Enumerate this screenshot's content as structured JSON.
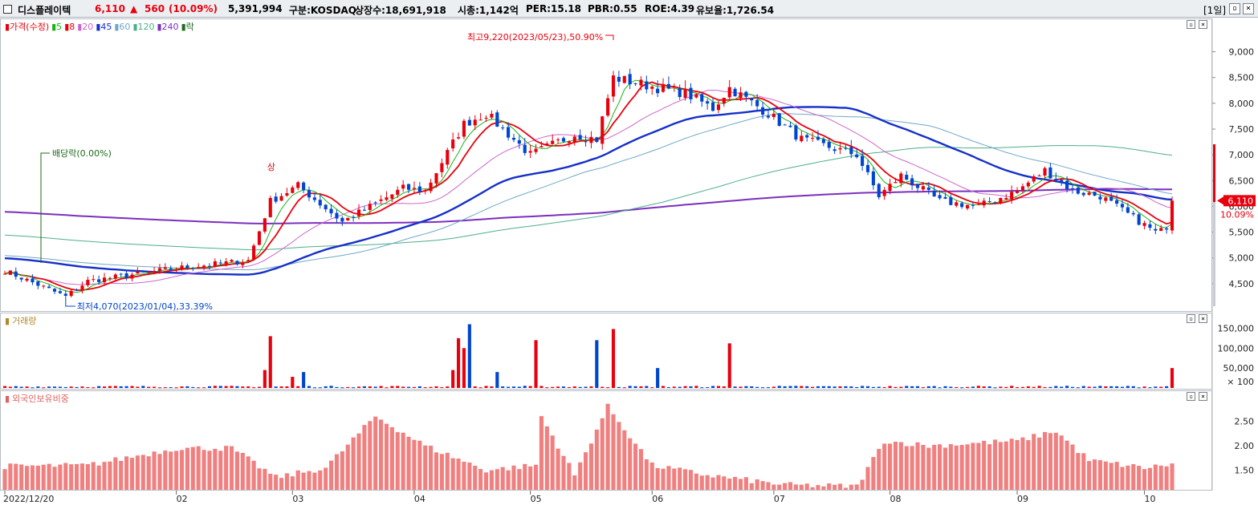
{
  "header": {
    "name": "디스플레이텍",
    "price": "6,110",
    "change_arrow": "▲",
    "change": "560",
    "change_pct": "(10.09%)",
    "volume": "5,391,994",
    "market": "구분:KOSDAQ",
    "shares": "상장수:18,691,918",
    "mcap": "시총:1,142억",
    "per": "PER:15.18",
    "pbr": "PBR:0.55",
    "roe": "ROE:4.39",
    "float": "유보율:1,726.54",
    "period": "[1일]",
    "colors": {
      "up": "#e8000d",
      "down": "#0045d0"
    }
  },
  "legends": {
    "price": [
      {
        "label": "가격(수정)",
        "color": "#e8000d"
      },
      {
        "label": "5",
        "color": "#18b418"
      },
      {
        "label": "8",
        "color": "#e8000d"
      },
      {
        "label": "20",
        "color": "#cc66cc"
      },
      {
        "label": "45",
        "color": "#1530c8"
      },
      {
        "label": "60",
        "color": "#6fa8c8"
      },
      {
        "label": "120",
        "color": "#4caf8a"
      },
      {
        "label": "240",
        "color": "#7b2fbe"
      },
      {
        "label": "락",
        "color": "#1e6b1e"
      }
    ],
    "volume": {
      "label": "거래량",
      "color": "#b08a2a"
    },
    "foreign": {
      "label": "외국인보유비중",
      "color": "#e06060"
    }
  },
  "annotations": {
    "high": "최고9,220(2023/05/23),50.90%",
    "low": "최저4,070(2023/01/04),33.39%",
    "dividend": "배당락(0.00%)",
    "upper_limit": "상",
    "current_price": "6,110",
    "current_pct": "10.09%"
  },
  "chart_data": [
    {
      "type": "candlestick",
      "title": "가격(수정)",
      "y_ticks": [
        "9,000",
        "8,500",
        "8,000",
        "7,500",
        "7,000",
        "6,500",
        "6,000",
        "5,500",
        "5,000",
        "4,500"
      ],
      "ylim": [
        4000,
        9600
      ],
      "x_labels": [
        "2022/12/20",
        "02",
        "03",
        "04",
        "05",
        "06",
        "07",
        "08",
        "09",
        "10"
      ],
      "moving_averages": [
        "5",
        "8",
        "20",
        "45",
        "60",
        "120",
        "240"
      ],
      "close_anchors": [
        [
          "2022/12/20",
          4750
        ],
        [
          "2023/01/04",
          4250
        ],
        [
          "2023/01/10",
          4550
        ],
        [
          "2023/02/01",
          4800
        ],
        [
          "2023/02/20",
          4950
        ],
        [
          "2023/02/24",
          6100
        ],
        [
          "2023/03/03",
          6400
        ],
        [
          "2023/03/15",
          5700
        ],
        [
          "2023/03/30",
          6350
        ],
        [
          "2023/04/05",
          6300
        ],
        [
          "2023/04/14",
          7600
        ],
        [
          "2023/04/20",
          7800
        ],
        [
          "2023/05/02",
          7000
        ],
        [
          "2023/05/12",
          7400
        ],
        [
          "2023/05/18",
          7300
        ],
        [
          "2023/05/23",
          8500
        ],
        [
          "2023/06/02",
          8300
        ],
        [
          "2023/06/09",
          8200
        ],
        [
          "2023/06/16",
          7900
        ],
        [
          "2023/06/21",
          8300
        ],
        [
          "2023/06/30",
          7800
        ],
        [
          "2023/07/10",
          7300
        ],
        [
          "2023/07/24",
          7000
        ],
        [
          "2023/07/28",
          6200
        ],
        [
          "2023/08/03",
          6600
        ],
        [
          "2023/08/14",
          6100
        ],
        [
          "2023/08/23",
          6000
        ],
        [
          "2023/09/01",
          6300
        ],
        [
          "2023/09/08",
          6700
        ],
        [
          "2023/09/15",
          6300
        ],
        [
          "2023/09/22",
          6200
        ],
        [
          "2023/10/06",
          5500
        ],
        [
          "2023/10/10",
          5550
        ],
        [
          "2023/10/11",
          6110
        ]
      ]
    },
    {
      "type": "bar",
      "title": "거래량",
      "y_ticks": [
        "150,000",
        "100,000",
        "50,000",
        "× 100"
      ],
      "ylim": [
        0,
        165000
      ],
      "peaks_x100": [
        [
          "2023/02/23",
          45000
        ],
        [
          "2023/02/24",
          130000
        ],
        [
          "2023/03/02",
          28000
        ],
        [
          "2023/03/06",
          40000
        ],
        [
          "2023/04/12",
          45000
        ],
        [
          "2023/04/13",
          125000
        ],
        [
          "2023/04/14",
          100000
        ],
        [
          "2023/04/17",
          160000
        ],
        [
          "2023/04/24",
          40000
        ],
        [
          "2023/05/03",
          120000
        ],
        [
          "2023/05/18",
          120000
        ],
        [
          "2023/05/23",
          148000
        ],
        [
          "2023/06/02",
          50000
        ],
        [
          "2023/06/21",
          112000
        ],
        [
          "2023/10/11",
          50000
        ]
      ]
    },
    {
      "type": "bar",
      "title": "외국인보유비중",
      "y_ticks": [
        "2.50",
        "2.00",
        "1.50"
      ],
      "ylim": [
        1.1,
        2.95
      ],
      "anchors": [
        [
          "2022/12/20",
          1.58
        ],
        [
          "2023/01/10",
          1.6
        ],
        [
          "2023/02/01",
          1.95
        ],
        [
          "2023/02/15",
          1.95
        ],
        [
          "2023/02/27",
          1.35
        ],
        [
          "2023/03/10",
          1.55
        ],
        [
          "2023/03/23",
          2.6
        ],
        [
          "2023/04/05",
          2.0
        ],
        [
          "2023/04/20",
          1.5
        ],
        [
          "2023/05/03",
          1.6
        ],
        [
          "2023/05/04",
          2.6
        ],
        [
          "2023/05/12",
          1.4
        ],
        [
          "2023/05/22",
          2.8
        ],
        [
          "2023/06/01",
          1.6
        ],
        [
          "2023/06/15",
          1.4
        ],
        [
          "2023/07/05",
          1.2
        ],
        [
          "2023/07/24",
          1.17
        ],
        [
          "2023/07/31",
          2.1
        ],
        [
          "2023/08/10",
          2.0
        ],
        [
          "2023/09/01",
          2.1
        ],
        [
          "2023/09/12",
          2.3
        ],
        [
          "2023/09/20",
          1.7
        ],
        [
          "2023/10/04",
          1.55
        ],
        [
          "2023/10/11",
          1.62
        ]
      ]
    }
  ]
}
